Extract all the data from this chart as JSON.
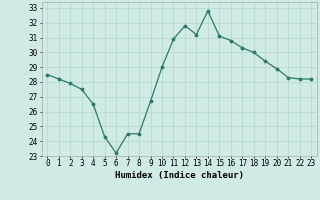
{
  "x": [
    0,
    1,
    2,
    3,
    4,
    5,
    6,
    7,
    8,
    9,
    10,
    11,
    12,
    13,
    14,
    15,
    16,
    17,
    18,
    19,
    20,
    21,
    22,
    23
  ],
  "y": [
    28.5,
    28.2,
    27.9,
    27.5,
    26.5,
    24.3,
    23.2,
    24.5,
    24.5,
    26.7,
    29.0,
    30.9,
    31.8,
    31.2,
    32.8,
    31.1,
    30.8,
    30.3,
    30.0,
    29.4,
    28.9,
    28.3,
    28.2,
    28.2
  ],
  "line_color": "#2d7a6a",
  "marker": ".",
  "marker_size": 3.5,
  "bg_color": "#d0ebe5",
  "grid_color": "#b8d8d2",
  "xlabel": "Humidex (Indice chaleur)",
  "ylim": [
    23,
    33.4
  ],
  "xlim": [
    -0.5,
    23.5
  ],
  "yticks": [
    23,
    24,
    25,
    26,
    27,
    28,
    29,
    30,
    31,
    32,
    33
  ],
  "xticks": [
    0,
    1,
    2,
    3,
    4,
    5,
    6,
    7,
    8,
    9,
    10,
    11,
    12,
    13,
    14,
    15,
    16,
    17,
    18,
    19,
    20,
    21,
    22,
    23
  ],
  "tick_fontsize": 5.5,
  "xlabel_fontsize": 6.5
}
